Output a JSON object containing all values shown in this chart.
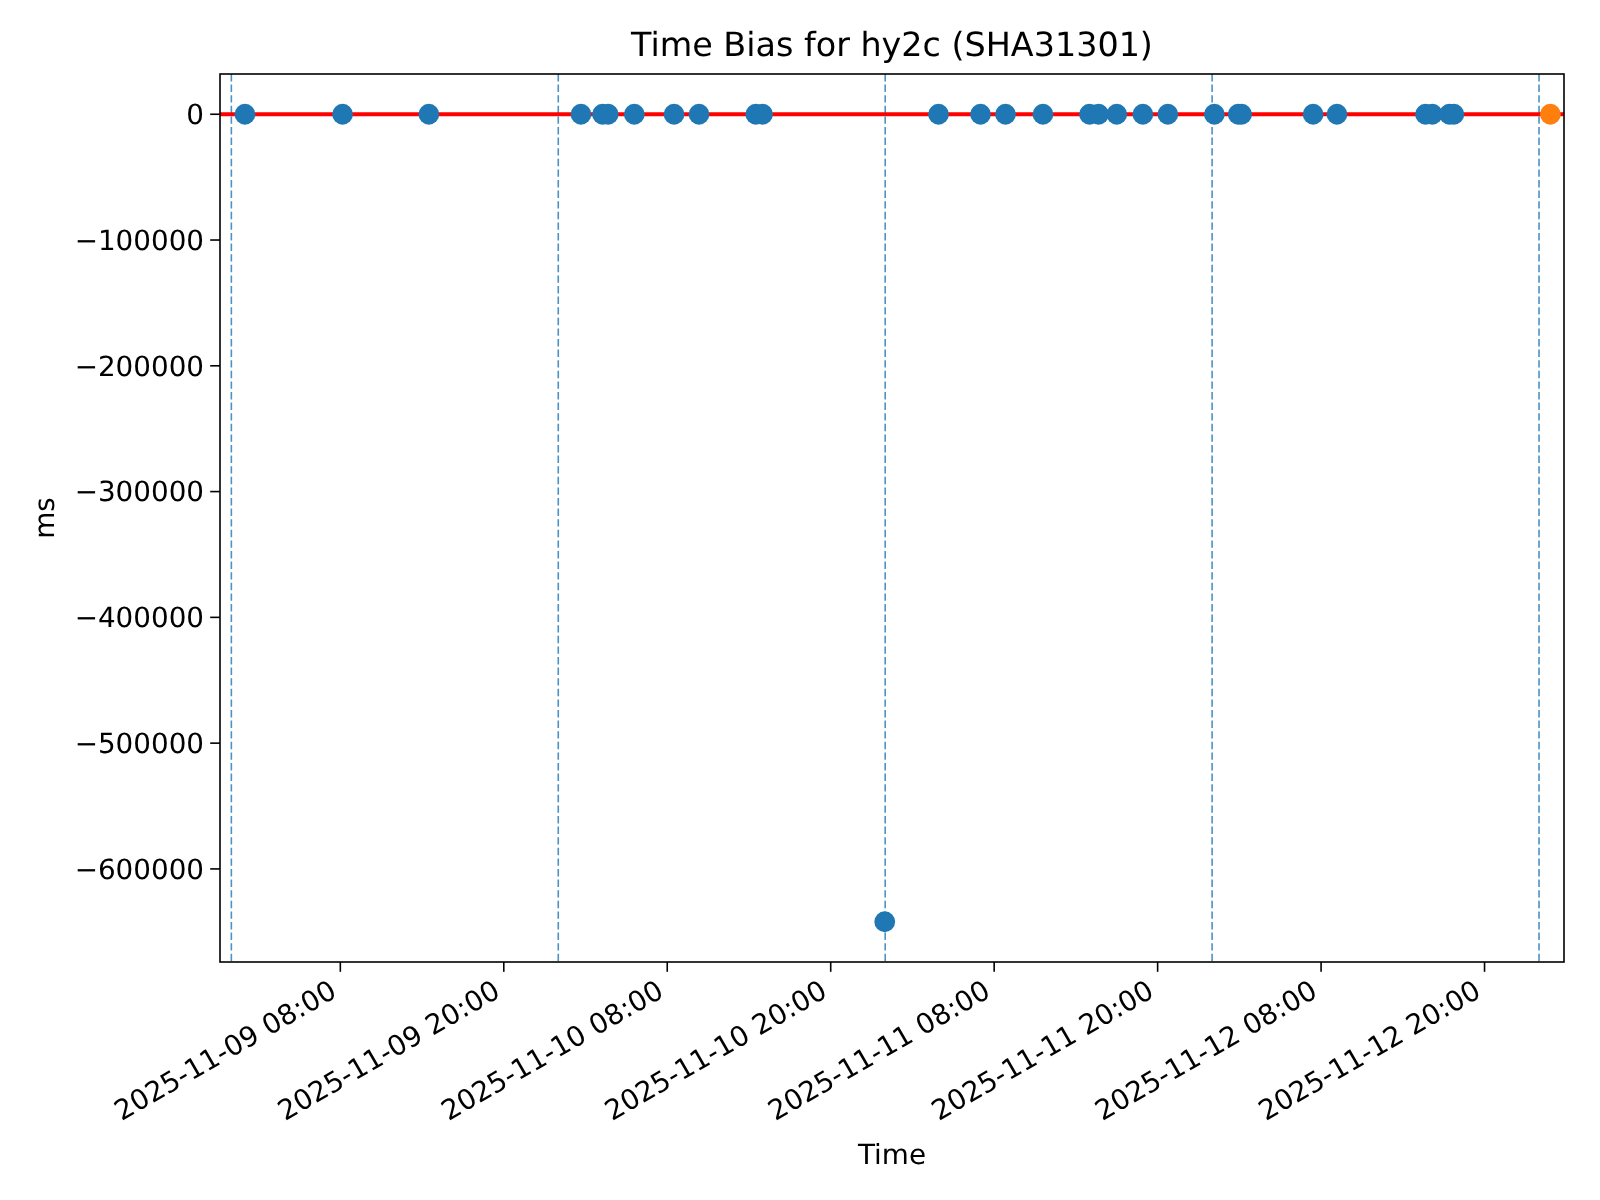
{
  "chart_data": {
    "type": "scatter",
    "title": "Time Bias for hy2c (SHA31301)",
    "xlabel": "Time",
    "ylabel": "ms",
    "marker": "circle",
    "series": [
      {
        "color": "#1f77b4",
        "x": [
          "2025-11-09T01:00",
          "2025-11-09T08:10",
          "2025-11-09T14:30",
          "2025-11-10T01:40",
          "2025-11-10T03:15",
          "2025-11-10T03:40",
          "2025-11-10T05:35",
          "2025-11-10T08:30",
          "2025-11-10T10:20",
          "2025-11-10T14:30",
          "2025-11-10T15:00",
          "2025-11-10T23:58",
          "2025-11-11T03:55",
          "2025-11-11T07:00",
          "2025-11-11T08:50",
          "2025-11-11T11:35",
          "2025-11-11T15:00",
          "2025-11-11T15:40",
          "2025-11-11T17:00",
          "2025-11-11T18:55",
          "2025-11-11T20:45",
          "2025-11-12T00:10",
          "2025-11-12T01:55",
          "2025-11-12T02:10",
          "2025-11-12T07:25",
          "2025-11-12T09:10",
          "2025-11-12T15:40",
          "2025-11-12T16:10",
          "2025-11-12T17:25",
          "2025-11-12T17:45"
        ],
        "values": [
          0,
          0,
          0,
          0,
          0,
          0,
          0,
          0,
          0,
          0,
          0,
          -642000,
          0,
          0,
          0,
          0,
          0,
          0,
          0,
          0,
          0,
          0,
          0,
          0,
          0,
          0,
          0,
          0,
          0,
          0
        ]
      },
      {
        "color": "#ff7f0e",
        "x": [
          "2025-11-13T00:50"
        ],
        "values": [
          0
        ]
      }
    ],
    "xlim": [
      "2025-11-08T23:10",
      "2025-11-13T01:50"
    ],
    "xticks": [
      {
        "value": "2025-11-09T08:00",
        "label": "2025-11-09 08:00"
      },
      {
        "value": "2025-11-09T20:00",
        "label": "2025-11-09 20:00"
      },
      {
        "value": "2025-11-10T08:00",
        "label": "2025-11-10 08:00"
      },
      {
        "value": "2025-11-10T20:00",
        "label": "2025-11-10 20:00"
      },
      {
        "value": "2025-11-11T08:00",
        "label": "2025-11-11 08:00"
      },
      {
        "value": "2025-11-11T20:00",
        "label": "2025-11-11 20:00"
      },
      {
        "value": "2025-11-12T08:00",
        "label": "2025-11-12 08:00"
      },
      {
        "value": "2025-11-12T20:00",
        "label": "2025-11-12 20:00"
      }
    ],
    "ylim": [
      -674000,
      32000
    ],
    "yticks": [
      0,
      -100000,
      -200000,
      -300000,
      -400000,
      -500000,
      -600000
    ],
    "ref_lines": [
      {
        "axis": "y",
        "value": 0,
        "color": "#ff0000",
        "line_style": "solid"
      },
      {
        "axis": "x",
        "value": "2025-11-09T00:00",
        "color": "#1f77b4",
        "line_style": "dashed"
      },
      {
        "axis": "x",
        "value": "2025-11-10T00:00",
        "color": "#1f77b4",
        "line_style": "dashed"
      },
      {
        "axis": "x",
        "value": "2025-11-11T00:00",
        "color": "#1f77b4",
        "line_style": "dashed"
      },
      {
        "axis": "x",
        "value": "2025-11-12T00:00",
        "color": "#1f77b4",
        "line_style": "dashed"
      },
      {
        "axis": "x",
        "value": "2025-11-13T00:00",
        "color": "#1f77b4",
        "line_style": "dashed"
      }
    ]
  }
}
